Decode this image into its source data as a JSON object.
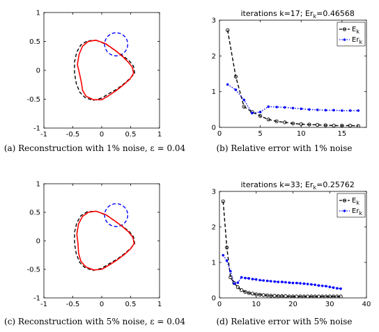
{
  "chart_data": [
    {
      "panel": "a",
      "type": "line",
      "caption": "(a) Reconstruction with 1% noise, ε = 0.04",
      "xlim": [
        -1,
        1
      ],
      "ylim": [
        -1,
        1
      ],
      "xticks": [
        "-1",
        "-0.5",
        "0",
        "0.5",
        "1"
      ],
      "yticks": [
        "-1",
        "-0.5",
        "0",
        "0.5",
        "1"
      ],
      "circle": {
        "cx": 0.25,
        "cy": 0.45,
        "r": 0.2,
        "color": "#0000ff"
      },
      "series": [
        {
          "style": "dashed",
          "color": "#000000",
          "x": [
            -0.1,
            0.08,
            0.25,
            0.38,
            0.48,
            0.55,
            0.57,
            0.5,
            0.4,
            0.27,
            0.13,
            0.0,
            -0.15,
            -0.29,
            -0.38,
            -0.44,
            -0.47,
            -0.47,
            -0.43,
            -0.36,
            -0.25,
            -0.1
          ],
          "y": [
            0.52,
            0.45,
            0.33,
            0.24,
            0.16,
            0.07,
            -0.05,
            -0.13,
            -0.22,
            -0.32,
            -0.4,
            -0.48,
            -0.52,
            -0.47,
            -0.38,
            -0.23,
            -0.05,
            0.15,
            0.32,
            0.44,
            0.51,
            0.52
          ]
        },
        {
          "style": "solid",
          "color": "#ff0000",
          "x": [
            -0.1,
            0.07,
            0.24,
            0.37,
            0.46,
            0.53,
            0.55,
            0.49,
            0.38,
            0.25,
            0.12,
            0.0,
            -0.14,
            -0.27,
            -0.33,
            -0.35,
            -0.38,
            -0.42,
            -0.39,
            -0.33,
            -0.23,
            -0.1
          ],
          "y": [
            0.52,
            0.46,
            0.34,
            0.23,
            0.14,
            0.05,
            -0.05,
            -0.15,
            -0.25,
            -0.35,
            -0.44,
            -0.51,
            -0.51,
            -0.45,
            -0.35,
            -0.22,
            -0.08,
            0.1,
            0.28,
            0.42,
            0.5,
            0.52
          ]
        }
      ]
    },
    {
      "panel": "b",
      "type": "line",
      "title": "iterations k=17; Er_k=0.46568",
      "caption": "(b) Relative error with 1% noise",
      "xlim": [
        0,
        18
      ],
      "ylim": [
        0,
        3
      ],
      "xticks": [
        0,
        5,
        10,
        15
      ],
      "yticks": [
        0,
        1,
        2,
        3
      ],
      "legend": "top-right",
      "series": [
        {
          "name": "E_k",
          "color": "#000000",
          "style": "dashed",
          "marker": "circle",
          "x": [
            1,
            2,
            3,
            4,
            5,
            6,
            7,
            8,
            9,
            10,
            11,
            12,
            13,
            14,
            15,
            16,
            17
          ],
          "y": [
            2.72,
            1.42,
            0.58,
            0.43,
            0.32,
            0.22,
            0.17,
            0.14,
            0.11,
            0.09,
            0.08,
            0.07,
            0.06,
            0.05,
            0.05,
            0.05,
            0.04
          ]
        },
        {
          "name": "Er_k",
          "color": "#0000ff",
          "style": "dotted",
          "marker": "dot",
          "x": [
            1,
            2,
            3,
            4,
            5,
            6,
            7,
            8,
            9,
            10,
            11,
            12,
            13,
            14,
            15,
            16,
            17
          ],
          "y": [
            1.2,
            1.05,
            0.77,
            0.4,
            0.43,
            0.58,
            0.57,
            0.56,
            0.54,
            0.52,
            0.5,
            0.49,
            0.48,
            0.48,
            0.47,
            0.47,
            0.47
          ]
        }
      ]
    },
    {
      "panel": "c",
      "type": "line",
      "caption": "(c) Reconstruction with 5% noise, ε = 0.04",
      "xlim": [
        -1,
        1
      ],
      "ylim": [
        -1,
        1
      ],
      "xticks": [
        "-1",
        "-0.5",
        "0",
        "0.5",
        "1"
      ],
      "yticks": [
        "-1",
        "-0.5",
        "0",
        "0.5",
        "1"
      ],
      "circle": {
        "cx": 0.25,
        "cy": 0.45,
        "r": 0.2,
        "color": "#0000ff"
      },
      "series": [
        {
          "style": "dashed",
          "color": "#000000",
          "x": [
            -0.1,
            0.08,
            0.25,
            0.38,
            0.48,
            0.55,
            0.57,
            0.5,
            0.4,
            0.27,
            0.13,
            0.0,
            -0.15,
            -0.29,
            -0.38,
            -0.44,
            -0.47,
            -0.47,
            -0.43,
            -0.36,
            -0.25,
            -0.1
          ],
          "y": [
            0.52,
            0.45,
            0.33,
            0.24,
            0.16,
            0.07,
            -0.05,
            -0.13,
            -0.22,
            -0.32,
            -0.4,
            -0.48,
            -0.52,
            -0.47,
            -0.38,
            -0.23,
            -0.05,
            0.15,
            0.32,
            0.44,
            0.51,
            0.52
          ]
        },
        {
          "style": "solid",
          "color": "#ff0000",
          "x": [
            -0.1,
            0.07,
            0.24,
            0.37,
            0.47,
            0.54,
            0.56,
            0.5,
            0.39,
            0.26,
            0.12,
            0.0,
            -0.14,
            -0.27,
            -0.36,
            -0.4,
            -0.41,
            -0.43,
            -0.4,
            -0.33,
            -0.23,
            -0.1
          ],
          "y": [
            0.52,
            0.46,
            0.34,
            0.24,
            0.15,
            0.06,
            -0.05,
            -0.14,
            -0.24,
            -0.34,
            -0.43,
            -0.5,
            -0.51,
            -0.46,
            -0.36,
            -0.22,
            -0.06,
            0.12,
            0.3,
            0.43,
            0.5,
            0.52
          ]
        }
      ]
    },
    {
      "panel": "d",
      "type": "line",
      "title": "iterations k=33; Er_k=0.25762",
      "caption": "(d) Relative error with 5% noise",
      "xlim": [
        0,
        40
      ],
      "ylim": [
        0,
        3
      ],
      "xticks": [
        0,
        10,
        20,
        30,
        40
      ],
      "yticks": [
        0,
        1,
        2,
        3
      ],
      "legend": "top-right",
      "series": [
        {
          "name": "E_k",
          "color": "#000000",
          "style": "dashed",
          "marker": "circle",
          "x": [
            1,
            2,
            3,
            4,
            5,
            6,
            7,
            8,
            9,
            10,
            11,
            12,
            13,
            14,
            15,
            16,
            17,
            18,
            19,
            20,
            21,
            22,
            23,
            24,
            25,
            26,
            27,
            28,
            29,
            30,
            31,
            32,
            33
          ],
          "y": [
            2.72,
            1.42,
            0.58,
            0.42,
            0.3,
            0.22,
            0.17,
            0.14,
            0.12,
            0.1,
            0.09,
            0.08,
            0.07,
            0.06,
            0.06,
            0.05,
            0.05,
            0.05,
            0.04,
            0.04,
            0.04,
            0.04,
            0.04,
            0.04,
            0.04,
            0.04,
            0.04,
            0.04,
            0.04,
            0.04,
            0.04,
            0.04,
            0.04
          ]
        },
        {
          "name": "Er_k",
          "color": "#0000ff",
          "style": "dotted",
          "marker": "dot",
          "x": [
            1,
            2,
            3,
            4,
            5,
            6,
            7,
            8,
            9,
            10,
            11,
            12,
            13,
            14,
            15,
            16,
            17,
            18,
            19,
            20,
            21,
            22,
            23,
            24,
            25,
            26,
            27,
            28,
            29,
            30,
            31,
            32,
            33
          ],
          "y": [
            1.2,
            1.05,
            0.75,
            0.4,
            0.43,
            0.58,
            0.56,
            0.55,
            0.53,
            0.52,
            0.5,
            0.49,
            0.48,
            0.47,
            0.46,
            0.45,
            0.45,
            0.44,
            0.43,
            0.42,
            0.42,
            0.41,
            0.4,
            0.39,
            0.38,
            0.37,
            0.35,
            0.34,
            0.33,
            0.31,
            0.29,
            0.27,
            0.26
          ]
        }
      ]
    }
  ]
}
